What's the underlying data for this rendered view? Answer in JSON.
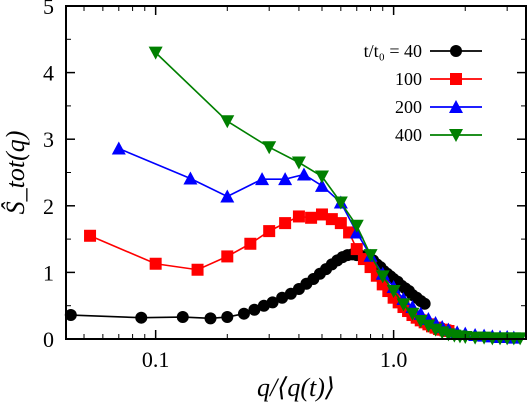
{
  "chart_data": {
    "type": "scatter",
    "title": "",
    "xlabel": "q/⟨q(t)⟩",
    "ylabel": "Ŝ_tot(q)",
    "xscale": "log",
    "xlim": [
      0.042,
      3.6
    ],
    "ylim": [
      0,
      5
    ],
    "xticks": [
      {
        "value": 0.1,
        "label": "0.1"
      },
      {
        "value": 1.0,
        "label": "1.0"
      }
    ],
    "yticks": [
      {
        "value": 0,
        "label": "0"
      },
      {
        "value": 1,
        "label": "1"
      },
      {
        "value": 2,
        "label": "2"
      },
      {
        "value": 3,
        "label": "3"
      },
      {
        "value": 4,
        "label": "4"
      },
      {
        "value": 5,
        "label": "5"
      }
    ],
    "grid": false,
    "legend_position": "top-right",
    "legend_prefix": "t/t₀ = ",
    "series": [
      {
        "name": "40",
        "color": "#000000",
        "marker": "circle",
        "x": [
          0.044,
          0.087,
          0.13,
          0.17,
          0.2,
          0.235,
          0.26,
          0.285,
          0.31,
          0.34,
          0.37,
          0.4,
          0.43,
          0.46,
          0.49,
          0.52,
          0.55,
          0.58,
          0.61,
          0.64,
          0.67,
          0.7,
          0.73,
          0.76,
          0.79,
          0.82,
          0.85,
          0.88,
          0.91,
          0.94,
          0.97,
          1.0,
          1.04,
          1.08,
          1.12,
          1.16,
          1.2,
          1.25,
          1.3,
          1.35
        ],
        "y": [
          0.36,
          0.32,
          0.33,
          0.31,
          0.33,
          0.38,
          0.44,
          0.5,
          0.55,
          0.62,
          0.68,
          0.75,
          0.83,
          0.9,
          0.98,
          1.05,
          1.12,
          1.18,
          1.23,
          1.26,
          1.27,
          1.26,
          1.25,
          1.24,
          1.22,
          1.18,
          1.12,
          1.08,
          1.02,
          0.98,
          0.94,
          0.9,
          0.86,
          0.8,
          0.76,
          0.72,
          0.66,
          0.62,
          0.57,
          0.53
        ]
      },
      {
        "name": "100",
        "color": "#ff0000",
        "marker": "square",
        "x": [
          0.053,
          0.1,
          0.15,
          0.2,
          0.25,
          0.3,
          0.35,
          0.4,
          0.45,
          0.5,
          0.55,
          0.6,
          0.65,
          0.7,
          0.75,
          0.8,
          0.85,
          0.9,
          0.95,
          1.0,
          1.05,
          1.1,
          1.15,
          1.2,
          1.25,
          1.3,
          1.35,
          1.4,
          1.45,
          1.5,
          1.55,
          1.6,
          1.65,
          1.7
        ],
        "y": [
          1.55,
          1.13,
          1.04,
          1.24,
          1.43,
          1.62,
          1.74,
          1.84,
          1.82,
          1.87,
          1.8,
          1.74,
          1.6,
          1.35,
          1.2,
          1.08,
          0.95,
          0.82,
          0.72,
          0.62,
          0.55,
          0.48,
          0.42,
          0.36,
          0.32,
          0.28,
          0.25,
          0.22,
          0.19,
          0.17,
          0.15,
          0.14,
          0.13,
          0.12
        ]
      },
      {
        "name": "200",
        "color": "#0000ff",
        "marker": "triangle-up",
        "x": [
          0.07,
          0.14,
          0.2,
          0.28,
          0.35,
          0.42,
          0.5,
          0.6,
          0.7,
          0.8,
          0.9,
          1.0,
          1.1,
          1.2,
          1.3,
          1.4,
          1.5,
          1.6,
          1.7,
          1.85,
          2.0,
          2.2,
          2.4,
          2.6,
          2.8,
          3.0,
          3.2
        ],
        "y": [
          2.86,
          2.41,
          2.14,
          2.4,
          2.4,
          2.47,
          2.3,
          2.05,
          1.6,
          1.25,
          0.98,
          0.78,
          0.6,
          0.48,
          0.38,
          0.3,
          0.24,
          0.18,
          0.14,
          0.1,
          0.08,
          0.06,
          0.05,
          0.04,
          0.03,
          0.03,
          0.02
        ]
      },
      {
        "name": "400",
        "color": "#008000",
        "marker": "triangle-down",
        "x": [
          0.1,
          0.2,
          0.3,
          0.4,
          0.5,
          0.6,
          0.7,
          0.8,
          0.9,
          1.0,
          1.1,
          1.2,
          1.3,
          1.4,
          1.5,
          1.6,
          1.7,
          1.8,
          1.9,
          2.0,
          2.2,
          2.4,
          2.6,
          2.8,
          3.0,
          3.2,
          3.4
        ],
        "y": [
          4.3,
          3.27,
          2.88,
          2.65,
          2.44,
          2.05,
          1.7,
          1.26,
          0.94,
          0.72,
          0.52,
          0.38,
          0.27,
          0.2,
          0.14,
          0.1,
          0.07,
          0.05,
          0.04,
          0.03,
          0.02,
          0.02,
          0.01,
          0.01,
          0.01,
          0.01,
          0.01
        ]
      }
    ]
  }
}
